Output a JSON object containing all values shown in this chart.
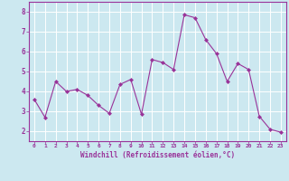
{
  "x": [
    0,
    1,
    2,
    3,
    4,
    5,
    6,
    7,
    8,
    9,
    10,
    11,
    12,
    13,
    14,
    15,
    16,
    17,
    18,
    19,
    20,
    21,
    22,
    23
  ],
  "y": [
    3.6,
    2.7,
    4.5,
    4.0,
    4.1,
    3.8,
    3.3,
    2.9,
    4.35,
    4.6,
    2.85,
    5.6,
    5.45,
    5.1,
    7.85,
    7.7,
    6.6,
    5.9,
    4.5,
    5.4,
    5.1,
    2.75,
    2.1,
    1.95
  ],
  "line_color": "#993399",
  "marker": "D",
  "marker_size": 2,
  "bg_color": "#cce8f0",
  "grid_color": "#ffffff",
  "xlabel": "Windchill (Refroidissement éolien,°C)",
  "xlabel_color": "#993399",
  "xtick_color": "#993399",
  "ytick_color": "#993399",
  "ylim": [
    1.5,
    8.5
  ],
  "xlim": [
    -0.5,
    23.5
  ],
  "yticks": [
    2,
    3,
    4,
    5,
    6,
    7,
    8
  ],
  "xticks": [
    0,
    1,
    2,
    3,
    4,
    5,
    6,
    7,
    8,
    9,
    10,
    11,
    12,
    13,
    14,
    15,
    16,
    17,
    18,
    19,
    20,
    21,
    22,
    23
  ]
}
